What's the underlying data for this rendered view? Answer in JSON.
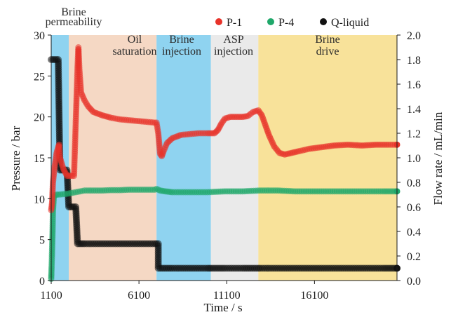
{
  "chart_data": {
    "type": "scatter",
    "xlabel": "Time / s",
    "ylabel_left": "Pressure / bar",
    "ylabel_right": "Flow rate / mL/min",
    "x_range": [
      1100,
      20800
    ],
    "y_left_range": [
      0,
      30
    ],
    "y_right_range": [
      0,
      2.0
    ],
    "x_ticks": [
      "1100",
      "6100",
      "11100",
      "16100"
    ],
    "x_tick_values": [
      1100,
      6100,
      11100,
      16100
    ],
    "y_left_ticks": [
      "0",
      "5",
      "10",
      "15",
      "20",
      "25",
      "30"
    ],
    "y_right_ticks": [
      "0.0",
      "0.2",
      "0.4",
      "0.6",
      "0.8",
      "1.0",
      "1.2",
      "1.4",
      "1.6",
      "1.8",
      "2.0"
    ],
    "legend_position": "top-right",
    "phases": [
      {
        "label": "Brine permeability",
        "start": 1100,
        "end": 2100,
        "color": "#8fd3f0"
      },
      {
        "label": "Oil saturation",
        "start": 2100,
        "end": 7100,
        "color": "#f5d8c4"
      },
      {
        "label": "Brine injection",
        "start": 7100,
        "end": 10200,
        "color": "#8fd3f0"
      },
      {
        "label": "ASP injection",
        "start": 10200,
        "end": 12900,
        "color": "#eaeaea"
      },
      {
        "label": "Brine drive",
        "start": 12900,
        "end": 20800,
        "color": "#f8e29a"
      }
    ],
    "series": [
      {
        "name": "P-1",
        "axis": "left",
        "color": "#e8332a",
        "x": [
          1100,
          1150,
          1200,
          1300,
          1400,
          1500,
          1550,
          1600,
          1800,
          2000,
          2400,
          2600,
          2650,
          2700,
          2800,
          2900,
          3000,
          3200,
          3500,
          4000,
          4500,
          5000,
          5500,
          6000,
          6500,
          7000,
          7100,
          7200,
          7300,
          7400,
          7500,
          7700,
          8000,
          8500,
          9000,
          9500,
          10000,
          10200,
          10400,
          10600,
          10800,
          11000,
          11300,
          11600,
          12000,
          12300,
          12600,
          12900,
          13100,
          13300,
          13500,
          13800,
          14100,
          14400,
          14800,
          15200,
          15800,
          16500,
          17200,
          18000,
          18800,
          19600,
          20300,
          20800
        ],
        "y": [
          8.6,
          9.5,
          12,
          14,
          15.5,
          16.3,
          16.6,
          15,
          13.6,
          12.8,
          12.8,
          26,
          28.5,
          26,
          23,
          22.5,
          22,
          21.3,
          20.6,
          20.2,
          19.9,
          19.7,
          19.6,
          19.5,
          19.4,
          19.3,
          19.3,
          18,
          15.5,
          15.2,
          15.8,
          16.8,
          17.4,
          17.8,
          17.9,
          18,
          18,
          18,
          18,
          18.4,
          19.2,
          19.8,
          20,
          20,
          20,
          20.1,
          20.6,
          20.8,
          20.2,
          19,
          17.8,
          16.4,
          15.6,
          15.4,
          15.6,
          15.8,
          16.1,
          16.3,
          16.5,
          16.6,
          16.5,
          16.6,
          16.6,
          16.6
        ]
      },
      {
        "name": "P-4",
        "axis": "left",
        "color": "#1fa86a",
        "x": [
          1100,
          1110,
          1120,
          1140,
          1160,
          1180,
          1200,
          1250,
          1300,
          1400,
          1500,
          2000,
          2500,
          3000,
          3500,
          4000,
          4500,
          5000,
          5500,
          6000,
          6500,
          7000,
          7100,
          7300,
          7600,
          8000,
          9000,
          10000,
          11000,
          12000,
          13000,
          14000,
          15000,
          16000,
          17000,
          18000,
          19000,
          20000,
          20800
        ],
        "y": [
          0.2,
          0.8,
          1.5,
          2.8,
          4.5,
          6.2,
          8.5,
          10.2,
          10.4,
          10.5,
          10.5,
          10.6,
          10.8,
          11,
          11,
          11,
          11.05,
          11.05,
          11.1,
          11.1,
          11.1,
          11.1,
          11.2,
          11,
          10.9,
          10.8,
          10.8,
          10.8,
          10.9,
          10.9,
          11,
          11,
          10.9,
          10.9,
          10.9,
          10.9,
          10.9,
          10.9,
          10.9
        ]
      },
      {
        "name": "Q-liquid",
        "axis": "right",
        "color": "#111111",
        "x": [
          1100,
          1200,
          1300,
          1400,
          1500,
          1600,
          1700,
          1800,
          1900,
          2000,
          2100,
          2200,
          2300,
          2400,
          2500,
          2600,
          2700,
          2800,
          2900,
          3000,
          3500,
          4000,
          4500,
          5000,
          5500,
          6000,
          6500,
          7000,
          7200,
          7200,
          8000,
          9000,
          10000,
          10200,
          11000,
          12000,
          12900,
          13000,
          14000,
          15000,
          16000,
          17000,
          18000,
          19000,
          20000,
          20800
        ],
        "y": [
          1.8,
          1.8,
          1.8,
          1.8,
          1.8,
          0.9,
          0.9,
          0.9,
          0.9,
          0.9,
          0.6,
          0.6,
          0.6,
          0.6,
          0.6,
          0.3,
          0.3,
          0.3,
          0.3,
          0.3,
          0.3,
          0.3,
          0.3,
          0.3,
          0.3,
          0.3,
          0.3,
          0.3,
          0.3,
          0.1,
          0.1,
          0.1,
          0.1,
          0.1,
          0.1,
          0.1,
          0.1,
          0.1,
          0.1,
          0.1,
          0.1,
          0.1,
          0.1,
          0.1,
          0.1,
          0.1
        ]
      }
    ]
  }
}
